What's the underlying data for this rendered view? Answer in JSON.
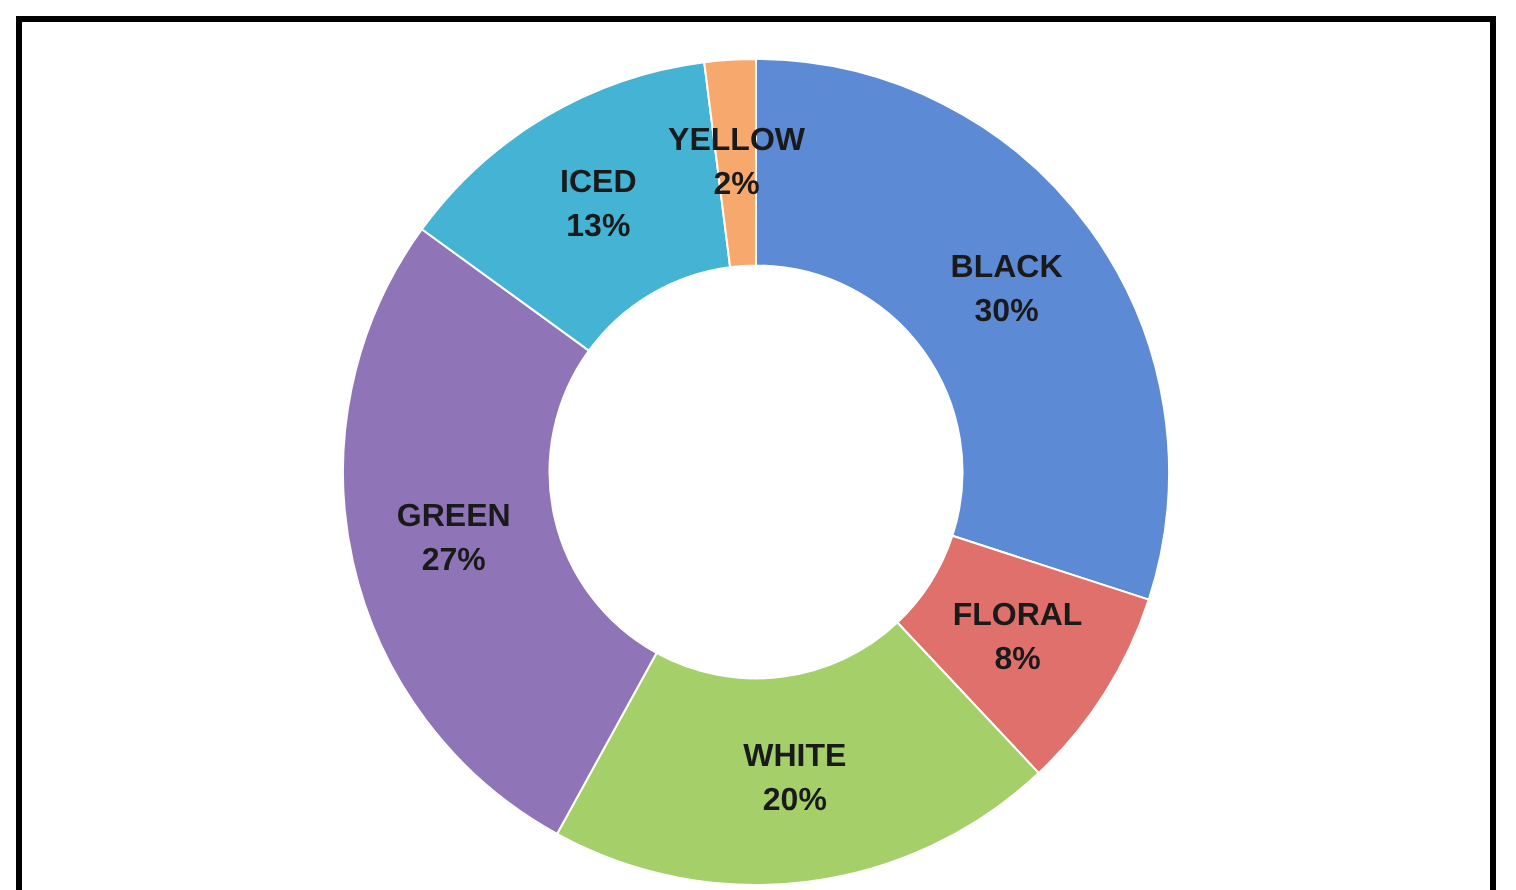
{
  "chart_data": {
    "type": "donut",
    "categories": [
      "BLACK",
      "FLORAL",
      "WHITE",
      "GREEN",
      "ICED",
      "YELLOW"
    ],
    "values": [
      30,
      8,
      20,
      27,
      13,
      2
    ],
    "colors": [
      "#5d8ad4",
      "#e0706c",
      "#a5cf68",
      "#8f75b8",
      "#45b3d3",
      "#f7a86c"
    ],
    "value_labels": [
      "30%",
      "8%",
      "20%",
      "27%",
      "13%",
      "2%"
    ],
    "legend": false
  }
}
